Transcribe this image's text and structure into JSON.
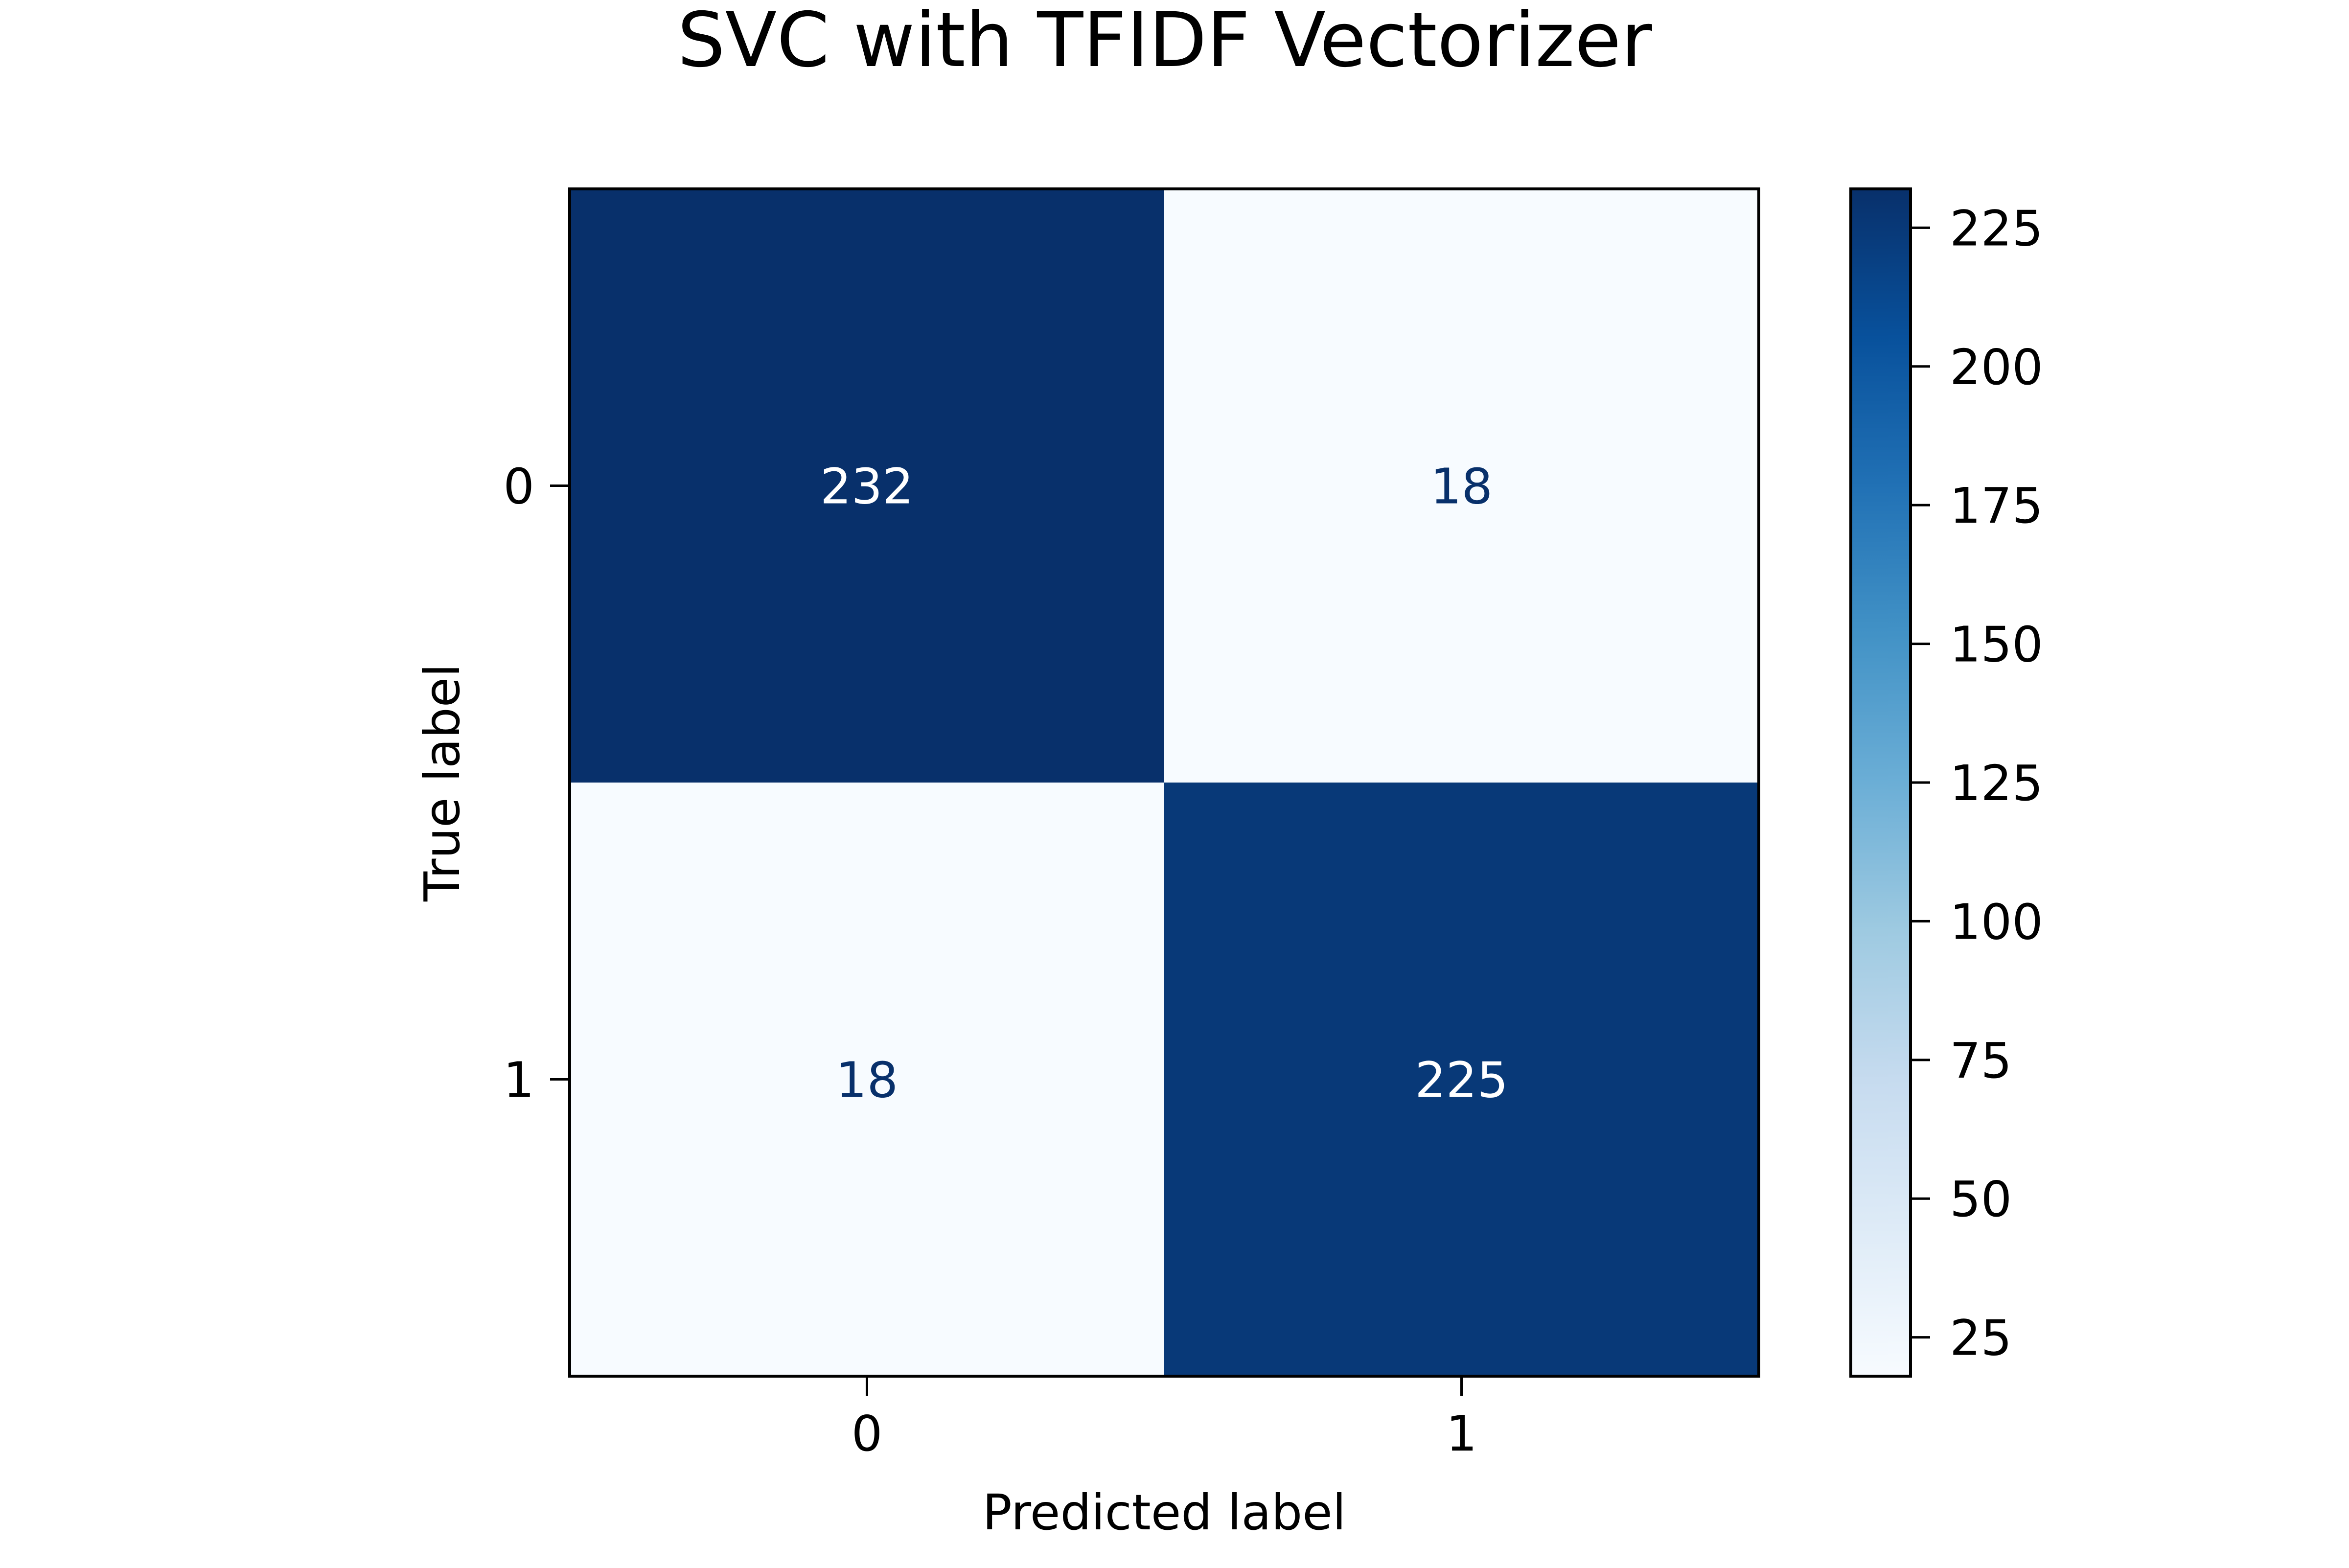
{
  "chart_data": {
    "type": "heatmap",
    "title": "SVC with TFIDF Vectorizer",
    "xlabel": "Predicted label",
    "ylabel": "True label",
    "x_categories": [
      "0",
      "1"
    ],
    "y_categories": [
      "0",
      "1"
    ],
    "matrix": [
      [
        232,
        18
      ],
      [
        18,
        225
      ]
    ],
    "colormap": "Blues",
    "colors": {
      "low": "#f7fbff",
      "high": "#08306b",
      "text_on_dark": "#ffffff",
      "text_on_light": "#08306b"
    },
    "colorbar": {
      "range": [
        18,
        232
      ],
      "ticks": [
        "25",
        "50",
        "75",
        "100",
        "125",
        "150",
        "175",
        "200",
        "225"
      ]
    }
  }
}
